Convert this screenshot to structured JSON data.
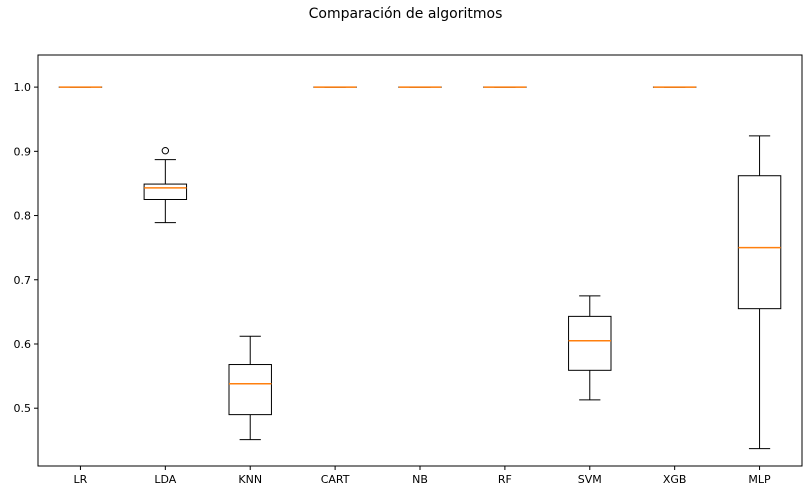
{
  "chart_data": {
    "type": "boxplot",
    "title": "Comparación de algoritmos",
    "xlabel": "",
    "ylabel": "",
    "ylim": [
      0.41,
      1.05
    ],
    "yticks": [
      "0.5",
      "0.6",
      "0.7",
      "0.8",
      "0.9",
      "1.0"
    ],
    "categories": [
      "LR",
      "LDA",
      "KNN",
      "CART",
      "NB",
      "RF",
      "SVM",
      "XGB",
      "MLP"
    ],
    "boxes": [
      {
        "name": "LR",
        "whislo": 1.0,
        "q1": 1.0,
        "med": 1.0,
        "q3": 1.0,
        "whishi": 1.0,
        "fliers": []
      },
      {
        "name": "LDA",
        "whislo": 0.789,
        "q1": 0.825,
        "med": 0.843,
        "q3": 0.849,
        "whishi": 0.887,
        "fliers": [
          0.901
        ]
      },
      {
        "name": "KNN",
        "whislo": 0.451,
        "q1": 0.49,
        "med": 0.538,
        "q3": 0.568,
        "whishi": 0.612,
        "fliers": []
      },
      {
        "name": "CART",
        "whislo": 1.0,
        "q1": 1.0,
        "med": 1.0,
        "q3": 1.0,
        "whishi": 1.0,
        "fliers": []
      },
      {
        "name": "NB",
        "whislo": 1.0,
        "q1": 1.0,
        "med": 1.0,
        "q3": 1.0,
        "whishi": 1.0,
        "fliers": []
      },
      {
        "name": "RF",
        "whislo": 1.0,
        "q1": 1.0,
        "med": 1.0,
        "q3": 1.0,
        "whishi": 1.0,
        "fliers": []
      },
      {
        "name": "SVM",
        "whislo": 0.513,
        "q1": 0.559,
        "med": 0.605,
        "q3": 0.643,
        "whishi": 0.675,
        "fliers": []
      },
      {
        "name": "XGB",
        "whislo": 1.0,
        "q1": 1.0,
        "med": 1.0,
        "q3": 1.0,
        "whishi": 1.0,
        "fliers": []
      },
      {
        "name": "MLP",
        "whislo": 0.437,
        "q1": 0.655,
        "med": 0.75,
        "q3": 0.862,
        "whishi": 0.924,
        "fliers": []
      }
    ],
    "grid": false,
    "colors": {
      "box": "#000000",
      "median": "#ff7f0e",
      "flier": "#000000"
    }
  }
}
